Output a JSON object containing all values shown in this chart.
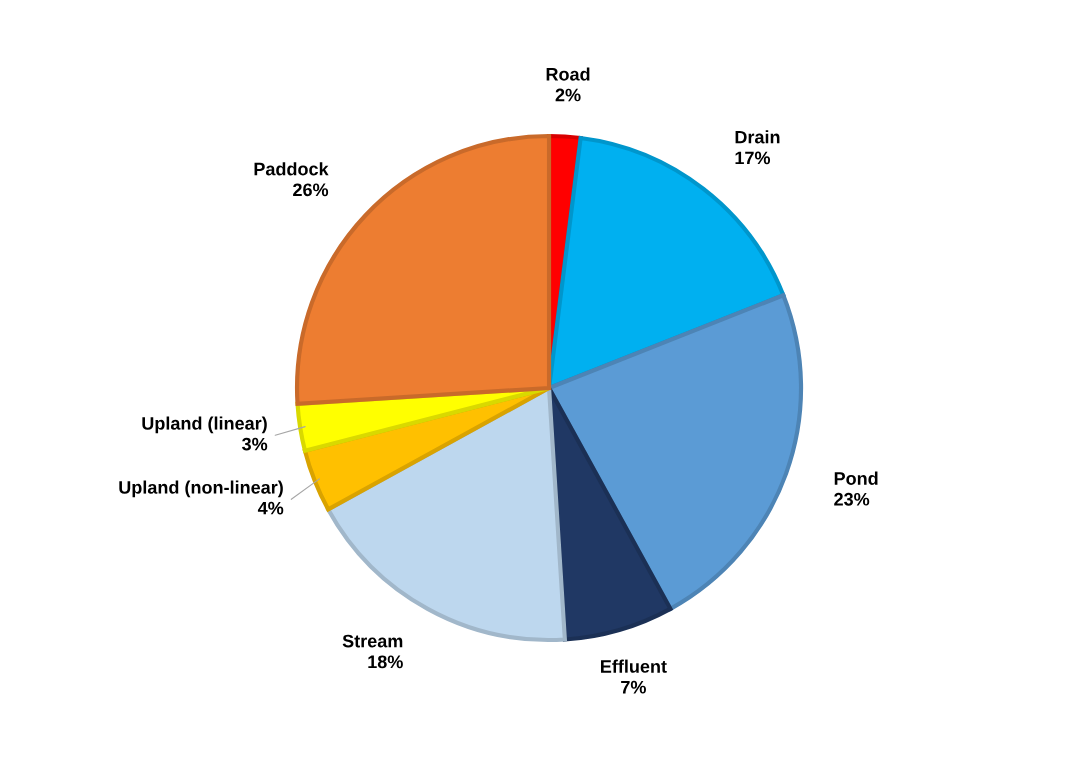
{
  "chart_data": {
    "type": "pie",
    "categories": [
      "Road",
      "Drain",
      "Pond",
      "Effluent",
      "Stream",
      "Upland (non-linear)",
      "Upland (linear)",
      "Paddock"
    ],
    "values": [
      2,
      17,
      23,
      7,
      18,
      4,
      3,
      26
    ],
    "value_labels": [
      "2%",
      "17%",
      "23%",
      "7%",
      "18%",
      "4%",
      "3%",
      "26%"
    ],
    "colors": [
      "#ff0000",
      "#00b0f0",
      "#5b9bd5",
      "#203864",
      "#bdd7ee",
      "#ffc000",
      "#ffff00",
      "#ed7d31"
    ]
  }
}
